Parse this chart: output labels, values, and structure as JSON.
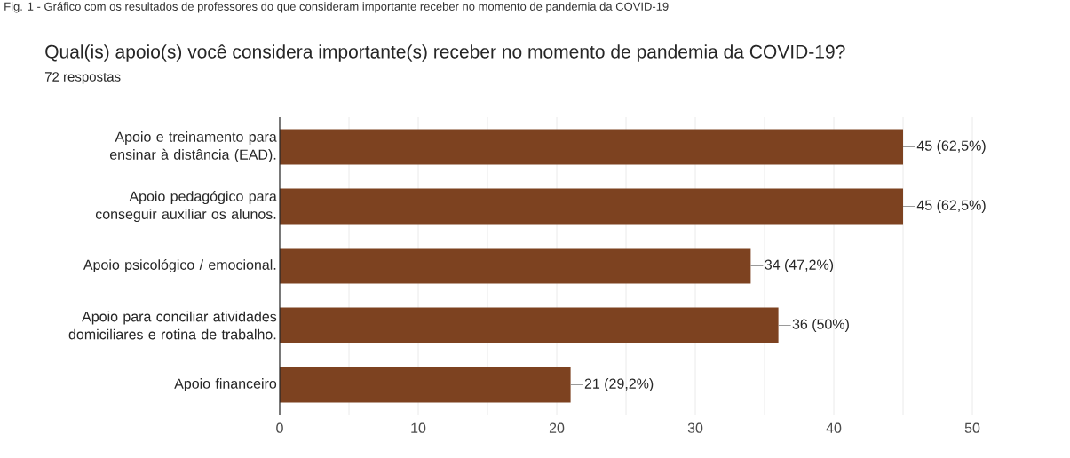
{
  "chart_data": {
    "type": "bar",
    "orientation": "horizontal",
    "title": "Qual(is) apoio(s) você considera importante(s) receber no momento de pandemia da COVID-19?",
    "subtitle": "72 respostas",
    "annotations": [
      "Fig. 1 - Gráfico com os resultados de professores do que consideram importante receber no momento de pandemia da COVID-19"
    ],
    "categories": [
      "Apoio e treinamento para ensinar à distância (EAD).",
      "Apoio pedagógico para conseguir auxiliar os alunos.",
      "Apoio psicológico / emocional.",
      "Apoio para conciliar atividades domiciliares e rotina de trabalho.",
      "Apoio financeiro"
    ],
    "values": [
      45,
      45,
      34,
      36,
      21
    ],
    "value_labels": [
      "45 (62,5%)",
      "45 (62,5%)",
      "34 (47,2%)",
      "36 (50%)",
      "21 (29,2%)"
    ],
    "color": "#7d4220",
    "xlim": [
      0,
      50
    ],
    "xticks": [
      0,
      {
        "value": 5,
        "label": null
      },
      10,
      {
        "value": 15,
        "label": null
      },
      20,
      {
        "value": 25,
        "label": null
      },
      30,
      {
        "value": 35,
        "label": null
      },
      40,
      {
        "value": 45,
        "label": null
      },
      50
    ],
    "grid": "x"
  }
}
